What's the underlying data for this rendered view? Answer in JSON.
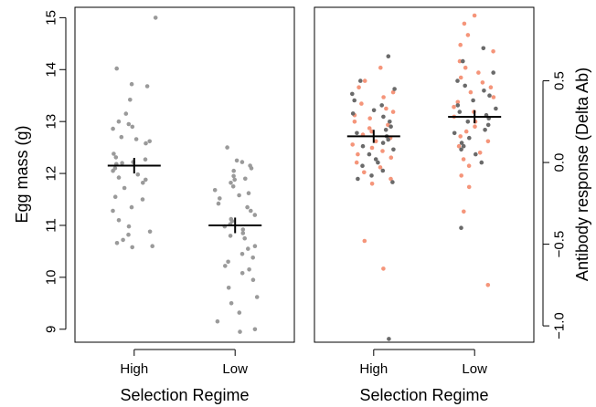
{
  "chart_data": [
    {
      "type": "scatter",
      "title": "",
      "xlabel": "Selection Regime",
      "ylabel": "Egg mass (g)",
      "y_axis_side": "left",
      "categories": [
        "High",
        "Low"
      ],
      "yticks": [
        "9",
        "10",
        "11",
        "12",
        "13",
        "14",
        "15"
      ],
      "ylim": [
        8.75,
        15.2
      ],
      "grid": false,
      "point_color": "#9a9a9a",
      "summary": [
        {
          "category": "High",
          "mean": 12.15,
          "se_low": 12.0,
          "se_high": 12.3
        },
        {
          "category": "Low",
          "mean": 11.0,
          "se_low": 10.85,
          "se_high": 11.15
        }
      ],
      "series": [
        {
          "category": "High",
          "values": [
            15.0,
            14.02,
            13.72,
            13.68,
            13.42,
            13.15,
            13.0,
            12.95,
            12.9,
            12.86,
            12.7,
            12.66,
            12.62,
            12.58,
            12.38,
            12.31,
            12.27,
            12.22,
            12.2,
            12.18,
            12.1,
            12.05,
            11.98,
            11.92,
            11.88,
            11.82,
            11.72,
            11.55,
            11.5,
            11.35,
            11.28,
            11.1,
            10.98,
            10.88,
            10.82,
            10.72,
            10.66,
            10.6,
            10.58
          ]
        },
        {
          "category": "Low",
          "values": [
            12.5,
            12.25,
            12.22,
            12.15,
            12.1,
            12.05,
            11.95,
            11.9,
            11.88,
            11.82,
            11.75,
            11.68,
            11.62,
            11.58,
            11.52,
            11.42,
            11.35,
            11.28,
            11.2,
            11.12,
            11.08,
            11.02,
            10.98,
            10.92,
            10.85,
            10.8,
            10.75,
            10.6,
            10.55,
            10.45,
            10.38,
            10.3,
            10.22,
            10.15,
            10.08,
            9.95,
            9.8,
            9.62,
            9.5,
            9.32,
            9.15,
            9.0,
            8.95
          ]
        }
      ]
    },
    {
      "type": "scatter",
      "title": "",
      "xlabel": "Selection Regime",
      "ylabel": "Antibody response (Delta Ab)",
      "y_axis_side": "right",
      "categories": [
        "High",
        "Low"
      ],
      "yticks": [
        "−1.0",
        "−0.5",
        "0.0",
        "0.5"
      ],
      "ylim": [
        -1.1,
        0.95
      ],
      "grid": false,
      "colors": {
        "dark": "#6a6a6a",
        "salmon": "#f5957a"
      },
      "summary": [
        {
          "category": "High",
          "mean": 0.16,
          "se_low": 0.12,
          "se_high": 0.2
        },
        {
          "category": "Low",
          "mean": 0.28,
          "se_low": 0.24,
          "se_high": 0.32
        }
      ],
      "series": [
        {
          "category": "High",
          "dark": [
            0.65,
            0.5,
            0.45,
            0.42,
            0.38,
            0.35,
            0.32,
            0.3,
            0.28,
            0.25,
            0.22,
            0.2,
            0.18,
            0.16,
            0.14,
            0.12,
            0.1,
            0.08,
            0.05,
            0.02,
            0.0,
            -0.02,
            -0.05,
            -0.08,
            -0.1,
            -0.12,
            -1.08
          ],
          "salmon": [
            0.58,
            0.5,
            0.46,
            0.43,
            0.4,
            0.36,
            0.33,
            0.31,
            0.29,
            0.27,
            0.25,
            0.23,
            0.21,
            0.19,
            0.17,
            0.15,
            0.13,
            0.11,
            0.09,
            0.07,
            0.05,
            0.03,
            0.0,
            -0.03,
            -0.06,
            -0.1,
            -0.13,
            -0.48,
            -0.65
          ]
        },
        {
          "category": "Low",
          "dark": [
            0.7,
            0.62,
            0.55,
            0.5,
            0.47,
            0.44,
            0.41,
            0.38,
            0.35,
            0.33,
            0.31,
            0.29,
            0.27,
            0.25,
            0.23,
            0.2,
            0.18,
            0.15,
            0.12,
            0.1,
            0.08,
            0.05,
            0.0,
            -0.4
          ],
          "salmon": [
            0.9,
            0.85,
            0.78,
            0.72,
            0.68,
            0.62,
            0.58,
            0.55,
            0.52,
            0.49,
            0.46,
            0.43,
            0.4,
            0.37,
            0.34,
            0.31,
            0.28,
            0.25,
            0.22,
            0.19,
            0.16,
            0.13,
            0.1,
            0.06,
            0.02,
            -0.02,
            -0.08,
            -0.15,
            -0.3,
            -0.75
          ]
        }
      ]
    }
  ]
}
